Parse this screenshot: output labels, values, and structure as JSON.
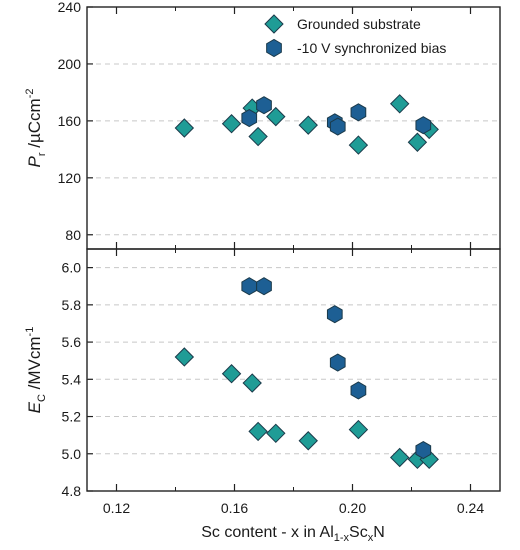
{
  "chart_data": [
    {
      "type": "scatter",
      "ylabel": {
        "main": "P",
        "sub": "r",
        "unit_pre": " /µCcm",
        "sup": "-2"
      },
      "ylim": [
        70,
        240
      ],
      "yticks": [
        80,
        120,
        160,
        200,
        240
      ],
      "ytick_labels": [
        "80",
        "120",
        "160",
        "200",
        "240"
      ],
      "grid": "horizontal dashed",
      "legend_position": "top-right",
      "series": [
        {
          "name": "Grounded substrate",
          "marker": "diamond",
          "color": "#1f9c96",
          "points": [
            {
              "x": 0.143,
              "y": 155
            },
            {
              "x": 0.159,
              "y": 158
            },
            {
              "x": 0.166,
              "y": 169
            },
            {
              "x": 0.168,
              "y": 149
            },
            {
              "x": 0.174,
              "y": 163
            },
            {
              "x": 0.185,
              "y": 157
            },
            {
              "x": 0.202,
              "y": 143
            },
            {
              "x": 0.216,
              "y": 172
            },
            {
              "x": 0.222,
              "y": 145
            },
            {
              "x": 0.226,
              "y": 154
            }
          ]
        },
        {
          "name": "-10 V synchronized bias",
          "marker": "hexagon",
          "color": "#1d5f94",
          "points": [
            {
              "x": 0.165,
              "y": 162
            },
            {
              "x": 0.17,
              "y": 171
            },
            {
              "x": 0.194,
              "y": 159
            },
            {
              "x": 0.195,
              "y": 156
            },
            {
              "x": 0.202,
              "y": 166
            },
            {
              "x": 0.224,
              "y": 157
            }
          ]
        }
      ]
    },
    {
      "type": "scatter",
      "ylabel": {
        "main": "E",
        "sub": "C",
        "unit_pre": " /MVcm",
        "sup": "-1"
      },
      "ylim": [
        4.8,
        6.1
      ],
      "yticks": [
        4.8,
        5.0,
        5.2,
        5.4,
        5.6,
        5.8,
        6.0
      ],
      "ytick_labels": [
        "4.8",
        "5.0",
        "5.2",
        "5.4",
        "5.6",
        "5.8",
        "6.0"
      ],
      "grid": "horizontal dashed",
      "series": [
        {
          "name": "Grounded substrate",
          "marker": "diamond",
          "color": "#1f9c96",
          "points": [
            {
              "x": 0.143,
              "y": 5.52
            },
            {
              "x": 0.159,
              "y": 5.43
            },
            {
              "x": 0.166,
              "y": 5.38
            },
            {
              "x": 0.168,
              "y": 5.12
            },
            {
              "x": 0.174,
              "y": 5.11
            },
            {
              "x": 0.185,
              "y": 5.07
            },
            {
              "x": 0.202,
              "y": 5.13
            },
            {
              "x": 0.216,
              "y": 4.98
            },
            {
              "x": 0.222,
              "y": 4.97
            },
            {
              "x": 0.226,
              "y": 4.97
            }
          ]
        },
        {
          "name": "-10 V synchronized bias",
          "marker": "hexagon",
          "color": "#1d5f94",
          "points": [
            {
              "x": 0.165,
              "y": 5.9
            },
            {
              "x": 0.17,
              "y": 5.9
            },
            {
              "x": 0.194,
              "y": 5.75
            },
            {
              "x": 0.195,
              "y": 5.49
            },
            {
              "x": 0.202,
              "y": 5.34
            },
            {
              "x": 0.224,
              "y": 5.02
            }
          ]
        }
      ]
    }
  ],
  "shared_x": {
    "xlim": [
      0.11,
      0.25
    ],
    "xticks": [
      0.12,
      0.16,
      0.2,
      0.24
    ],
    "xtick_labels": [
      "0.12",
      "0.16",
      "0.20",
      "0.24"
    ],
    "minor_xticks": [
      0.14,
      0.18,
      0.22
    ],
    "xlabel": {
      "pre": "Sc content - x in Al",
      "sub1": "1-x",
      "mid": "Sc",
      "sub2": "x",
      "post": "N"
    }
  },
  "colors": {
    "teal": "#1f9c96",
    "blue": "#1d5f94",
    "edge": "#1b3a4a",
    "grid": "#c8c8c8"
  }
}
